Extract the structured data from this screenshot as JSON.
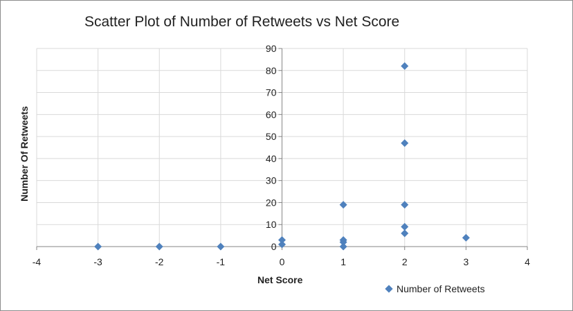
{
  "chart_data": {
    "type": "scatter",
    "title": "Scatter Plot of Number of Retweets vs Net Score",
    "xlabel": "Net Score",
    "ylabel": "Number Of Retweets",
    "xlim": [
      -4,
      4
    ],
    "ylim": [
      0,
      90
    ],
    "x_ticks": [
      -4,
      -3,
      -2,
      -1,
      0,
      1,
      2,
      3,
      4
    ],
    "y_ticks": [
      0,
      10,
      20,
      30,
      40,
      50,
      60,
      70,
      80,
      90
    ],
    "grid": true,
    "legend_position": "bottom-right",
    "series": [
      {
        "name": "Number of Retweets",
        "color": "#4f81bd",
        "marker": "diamond",
        "points": [
          {
            "x": -3,
            "y": 0
          },
          {
            "x": -2,
            "y": 0
          },
          {
            "x": -1,
            "y": 0
          },
          {
            "x": 0,
            "y": 1
          },
          {
            "x": 0,
            "y": 3
          },
          {
            "x": 1,
            "y": 0
          },
          {
            "x": 1,
            "y": 2
          },
          {
            "x": 1,
            "y": 3
          },
          {
            "x": 1,
            "y": 19
          },
          {
            "x": 2,
            "y": 6
          },
          {
            "x": 2,
            "y": 9
          },
          {
            "x": 2,
            "y": 19
          },
          {
            "x": 2,
            "y": 47
          },
          {
            "x": 2,
            "y": 82
          },
          {
            "x": 3,
            "y": 4
          }
        ]
      }
    ]
  }
}
